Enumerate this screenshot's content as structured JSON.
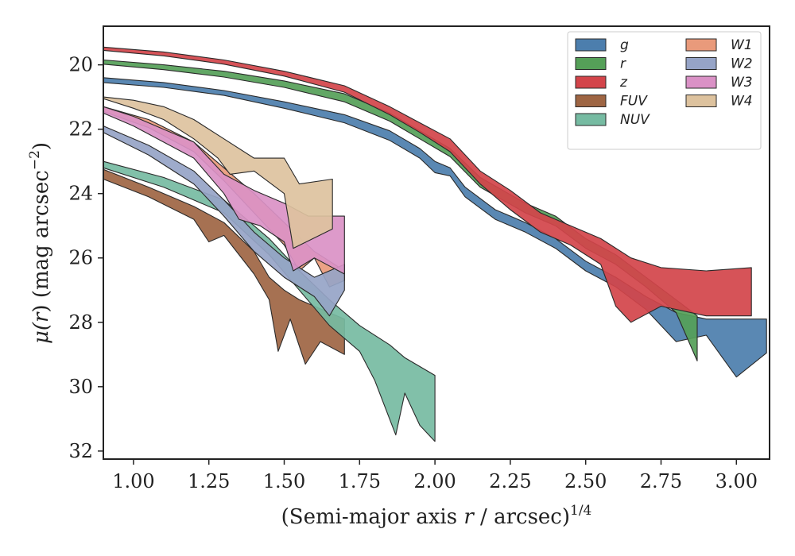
{
  "chart_data": {
    "type": "area",
    "xlabel_parts": {
      "prefix": "(Semi-major axis ",
      "var": "r",
      "mid": " / arcsec)",
      "sup": "1/4"
    },
    "ylabel_parts": {
      "prefix": "μ(",
      "var": "r",
      "mid": ") (mag arcsec",
      "sup": "−2",
      "suffix": ")"
    },
    "xlim": [
      0.9,
      3.11
    ],
    "ylim": [
      32.25,
      18.8
    ],
    "y_inverted": true,
    "xticks": [
      "1.00",
      "1.25",
      "1.50",
      "1.75",
      "2.00",
      "2.25",
      "2.50",
      "2.75",
      "3.00"
    ],
    "xtick_values": [
      1.0,
      1.25,
      1.5,
      1.75,
      2.0,
      2.25,
      2.5,
      2.75,
      3.0
    ],
    "yticks": [
      "20",
      "22",
      "24",
      "26",
      "28",
      "30",
      "32"
    ],
    "ytick_values": [
      20,
      22,
      24,
      26,
      28,
      30,
      32
    ],
    "grid": false,
    "legend_position": "top-right",
    "legend_columns": 2,
    "series": [
      {
        "name": "g",
        "color": "#4C7EAD",
        "upper": [
          [
            0.9,
            20.4
          ],
          [
            1.1,
            20.55
          ],
          [
            1.3,
            20.8
          ],
          [
            1.5,
            21.15
          ],
          [
            1.7,
            21.55
          ],
          [
            1.85,
            22.05
          ],
          [
            1.95,
            22.6
          ],
          [
            2.0,
            23.0
          ],
          [
            2.05,
            23.2
          ],
          [
            2.1,
            23.8
          ],
          [
            2.2,
            24.5
          ],
          [
            2.3,
            24.9
          ],
          [
            2.4,
            25.4
          ],
          [
            2.5,
            26.1
          ],
          [
            2.6,
            26.6
          ],
          [
            2.7,
            27.2
          ],
          [
            2.8,
            27.7
          ],
          [
            2.9,
            27.9
          ],
          [
            3.1,
            27.9
          ]
        ],
        "lower": [
          [
            0.9,
            20.55
          ],
          [
            1.1,
            20.7
          ],
          [
            1.3,
            20.95
          ],
          [
            1.5,
            21.35
          ],
          [
            1.7,
            21.8
          ],
          [
            1.85,
            22.35
          ],
          [
            1.95,
            22.9
          ],
          [
            2.0,
            23.35
          ],
          [
            2.05,
            23.45
          ],
          [
            2.1,
            24.1
          ],
          [
            2.2,
            24.8
          ],
          [
            2.3,
            25.2
          ],
          [
            2.4,
            25.7
          ],
          [
            2.5,
            26.4
          ],
          [
            2.6,
            26.9
          ],
          [
            2.7,
            27.6
          ],
          [
            2.8,
            28.6
          ],
          [
            2.9,
            28.4
          ],
          [
            3.0,
            29.7
          ],
          [
            3.1,
            28.95
          ]
        ]
      },
      {
        "name": "r",
        "color": "#55A058",
        "upper": [
          [
            0.9,
            19.85
          ],
          [
            1.1,
            20.0
          ],
          [
            1.3,
            20.2
          ],
          [
            1.5,
            20.5
          ],
          [
            1.7,
            20.9
          ],
          [
            1.85,
            21.5
          ],
          [
            1.95,
            22.05
          ],
          [
            2.05,
            22.6
          ],
          [
            2.15,
            23.5
          ],
          [
            2.3,
            24.3
          ],
          [
            2.4,
            24.7
          ],
          [
            2.5,
            25.4
          ],
          [
            2.6,
            25.9
          ],
          [
            2.7,
            26.6
          ],
          [
            2.8,
            27.3
          ],
          [
            2.87,
            27.8
          ]
        ],
        "lower": [
          [
            0.9,
            19.98
          ],
          [
            1.1,
            20.15
          ],
          [
            1.3,
            20.38
          ],
          [
            1.5,
            20.7
          ],
          [
            1.7,
            21.15
          ],
          [
            1.85,
            21.75
          ],
          [
            1.95,
            22.3
          ],
          [
            2.05,
            22.85
          ],
          [
            2.15,
            23.8
          ],
          [
            2.3,
            24.6
          ],
          [
            2.4,
            25.0
          ],
          [
            2.5,
            25.7
          ],
          [
            2.6,
            26.2
          ],
          [
            2.7,
            26.9
          ],
          [
            2.8,
            27.7
          ],
          [
            2.87,
            29.2
          ]
        ]
      },
      {
        "name": "z",
        "color": "#D3444A",
        "upper": [
          [
            0.9,
            19.45
          ],
          [
            1.1,
            19.6
          ],
          [
            1.3,
            19.85
          ],
          [
            1.5,
            20.2
          ],
          [
            1.7,
            20.65
          ],
          [
            1.85,
            21.3
          ],
          [
            1.95,
            21.8
          ],
          [
            2.05,
            22.3
          ],
          [
            2.15,
            23.3
          ],
          [
            2.25,
            23.9
          ],
          [
            2.35,
            24.6
          ],
          [
            2.45,
            25.0
          ],
          [
            2.55,
            25.4
          ],
          [
            2.65,
            26.0
          ],
          [
            2.75,
            26.3
          ],
          [
            2.9,
            26.4
          ],
          [
            3.05,
            26.3
          ]
        ],
        "lower": [
          [
            0.9,
            19.55
          ],
          [
            1.1,
            19.72
          ],
          [
            1.3,
            19.98
          ],
          [
            1.5,
            20.35
          ],
          [
            1.7,
            20.85
          ],
          [
            1.85,
            21.55
          ],
          [
            1.95,
            22.1
          ],
          [
            2.05,
            22.7
          ],
          [
            2.15,
            23.7
          ],
          [
            2.25,
            24.5
          ],
          [
            2.35,
            25.2
          ],
          [
            2.45,
            25.6
          ],
          [
            2.55,
            26.2
          ],
          [
            2.6,
            27.5
          ],
          [
            2.65,
            28.0
          ],
          [
            2.75,
            27.5
          ],
          [
            2.9,
            27.8
          ],
          [
            3.05,
            27.8
          ]
        ]
      },
      {
        "name": "FUV",
        "color": "#9E6543",
        "upper": [
          [
            0.9,
            23.25
          ],
          [
            1.05,
            23.8
          ],
          [
            1.2,
            24.4
          ],
          [
            1.3,
            24.9
          ],
          [
            1.4,
            25.8
          ],
          [
            1.45,
            26.6
          ],
          [
            1.5,
            27.0
          ],
          [
            1.55,
            27.3
          ],
          [
            1.6,
            27.5
          ],
          [
            1.7,
            27.9
          ]
        ],
        "lower": [
          [
            0.9,
            23.55
          ],
          [
            1.05,
            24.1
          ],
          [
            1.2,
            24.8
          ],
          [
            1.25,
            25.5
          ],
          [
            1.3,
            25.3
          ],
          [
            1.4,
            26.5
          ],
          [
            1.45,
            27.3
          ],
          [
            1.48,
            28.9
          ],
          [
            1.52,
            27.9
          ],
          [
            1.57,
            29.3
          ],
          [
            1.62,
            28.6
          ],
          [
            1.7,
            29.0
          ]
        ]
      },
      {
        "name": "NUV",
        "color": "#76BBA2",
        "upper": [
          [
            0.9,
            23.0
          ],
          [
            1.1,
            23.5
          ],
          [
            1.3,
            24.2
          ],
          [
            1.45,
            25.4
          ],
          [
            1.55,
            26.4
          ],
          [
            1.65,
            27.3
          ],
          [
            1.75,
            28.1
          ],
          [
            1.85,
            28.7
          ],
          [
            1.9,
            29.1
          ],
          [
            2.0,
            29.65
          ]
        ],
        "lower": [
          [
            0.9,
            23.2
          ],
          [
            1.1,
            23.8
          ],
          [
            1.3,
            24.6
          ],
          [
            1.45,
            25.9
          ],
          [
            1.55,
            27.0
          ],
          [
            1.65,
            28.1
          ],
          [
            1.75,
            28.9
          ],
          [
            1.8,
            29.8
          ],
          [
            1.87,
            31.5
          ],
          [
            1.9,
            30.2
          ],
          [
            1.95,
            31.2
          ],
          [
            2.0,
            31.7
          ]
        ]
      },
      {
        "name": "W1",
        "color": "#E99A7B",
        "upper": [
          [
            0.9,
            21.3
          ],
          [
            1.05,
            21.7
          ],
          [
            1.2,
            22.4
          ],
          [
            1.3,
            23.2
          ],
          [
            1.4,
            24.0
          ],
          [
            1.5,
            24.9
          ],
          [
            1.6,
            25.8
          ],
          [
            1.7,
            26.4
          ]
        ],
        "lower": [
          [
            0.9,
            21.45
          ],
          [
            1.05,
            21.95
          ],
          [
            1.2,
            22.7
          ],
          [
            1.3,
            23.6
          ],
          [
            1.4,
            24.6
          ],
          [
            1.5,
            25.6
          ],
          [
            1.55,
            26.4
          ],
          [
            1.6,
            26.0
          ],
          [
            1.65,
            26.9
          ],
          [
            1.7,
            26.7
          ]
        ]
      },
      {
        "name": "W2",
        "color": "#96A4C7",
        "upper": [
          [
            0.9,
            21.9
          ],
          [
            1.05,
            22.5
          ],
          [
            1.2,
            23.3
          ],
          [
            1.3,
            24.2
          ],
          [
            1.4,
            25.2
          ],
          [
            1.5,
            26.0
          ],
          [
            1.6,
            26.6
          ],
          [
            1.7,
            26.2
          ]
        ],
        "lower": [
          [
            0.9,
            22.1
          ],
          [
            1.05,
            22.8
          ],
          [
            1.2,
            23.7
          ],
          [
            1.3,
            24.7
          ],
          [
            1.4,
            25.8
          ],
          [
            1.5,
            26.6
          ],
          [
            1.6,
            27.2
          ],
          [
            1.65,
            27.8
          ],
          [
            1.7,
            27.0
          ]
        ]
      },
      {
        "name": "W3",
        "color": "#DA91C6",
        "upper": [
          [
            0.9,
            21.3
          ],
          [
            1.0,
            21.6
          ],
          [
            1.1,
            22.0
          ],
          [
            1.2,
            22.4
          ],
          [
            1.3,
            23.4
          ],
          [
            1.4,
            23.9
          ],
          [
            1.5,
            24.3
          ],
          [
            1.58,
            24.7
          ],
          [
            1.7,
            24.7
          ]
        ],
        "lower": [
          [
            0.9,
            21.5
          ],
          [
            1.0,
            21.9
          ],
          [
            1.1,
            22.4
          ],
          [
            1.2,
            22.9
          ],
          [
            1.3,
            24.0
          ],
          [
            1.35,
            24.8
          ],
          [
            1.42,
            25.0
          ],
          [
            1.5,
            25.5
          ],
          [
            1.53,
            26.4
          ],
          [
            1.6,
            26.0
          ],
          [
            1.7,
            26.5
          ]
        ]
      },
      {
        "name": "W4",
        "color": "#DDC29E",
        "upper": [
          [
            0.9,
            21.0
          ],
          [
            1.0,
            21.1
          ],
          [
            1.1,
            21.3
          ],
          [
            1.2,
            21.7
          ],
          [
            1.3,
            22.3
          ],
          [
            1.4,
            22.9
          ],
          [
            1.5,
            22.9
          ],
          [
            1.55,
            23.7
          ],
          [
            1.66,
            23.55
          ]
        ],
        "lower": [
          [
            0.9,
            21.05
          ],
          [
            1.0,
            21.35
          ],
          [
            1.1,
            21.7
          ],
          [
            1.2,
            22.3
          ],
          [
            1.28,
            22.9
          ],
          [
            1.32,
            23.4
          ],
          [
            1.4,
            23.3
          ],
          [
            1.5,
            24.0
          ],
          [
            1.53,
            25.7
          ],
          [
            1.66,
            25.1
          ]
        ]
      }
    ]
  }
}
